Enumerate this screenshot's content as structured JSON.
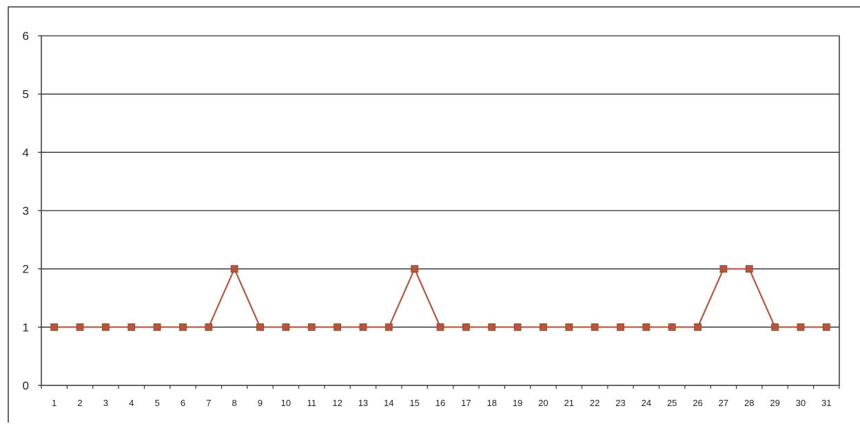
{
  "chart_data": {
    "type": "line",
    "title": "",
    "xlabel": "",
    "ylabel": "",
    "x": [
      1,
      2,
      3,
      4,
      5,
      6,
      7,
      8,
      9,
      10,
      11,
      12,
      13,
      14,
      15,
      16,
      17,
      18,
      19,
      20,
      21,
      22,
      23,
      24,
      25,
      26,
      27,
      28,
      29,
      30,
      31
    ],
    "y_ticks": [
      0,
      1,
      2,
      3,
      4,
      5,
      6
    ],
    "ylim": [
      0,
      6
    ],
    "grid": true,
    "legend": "none",
    "series": [
      {
        "values": [
          1,
          1,
          1,
          1,
          1,
          1,
          1,
          2,
          1,
          1,
          1,
          1,
          1,
          1,
          2,
          1,
          1,
          1,
          1,
          1,
          1,
          1,
          1,
          1,
          1,
          1,
          2,
          2,
          1,
          1,
          1
        ],
        "color": "#b5553c",
        "marker": "square"
      }
    ]
  }
}
